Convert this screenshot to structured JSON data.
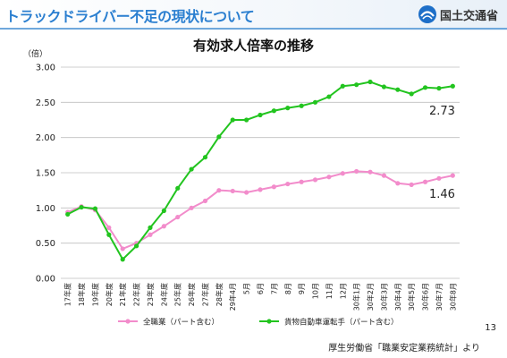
{
  "header": {
    "title": "トラックドライバー不足の現状について",
    "logo_text": "国土交通省",
    "logo_icon": "ministry-logo-icon"
  },
  "page_number": "13",
  "source": "厚生労働省「職業安定業務統計」より",
  "colors": {
    "header_title": "#2b7fd0",
    "series_all": "#f28ccb",
    "series_truck": "#22c41f",
    "grid": "#bfbfbf"
  },
  "chart_data": {
    "type": "line",
    "title": "有効求人倍率の推移",
    "ylabel": "（倍）",
    "xlabel": "",
    "ylim": [
      0,
      3
    ],
    "yticks": [
      "0.00",
      "0.50",
      "1.00",
      "1.50",
      "2.00",
      "2.50",
      "3.00"
    ],
    "grid": "horizontal",
    "legend_position": "bottom",
    "categories": [
      "17年度",
      "18年度",
      "19年度",
      "20年度",
      "21年度",
      "22年度",
      "23年度",
      "24年度",
      "25年度",
      "26年度",
      "27年度",
      "28年度",
      "29年4月",
      "5月",
      "6月",
      "7月",
      "8月",
      "9月",
      "10月",
      "11月",
      "12月",
      "30年1月",
      "30年2月",
      "30年3月",
      "30年4月",
      "30年5月",
      "30年6月",
      "30年7月",
      "30年8月"
    ],
    "series": [
      {
        "name": "全職業（パート含む）",
        "color": "#f28ccb",
        "values": [
          0.94,
          1.02,
          0.97,
          0.72,
          0.42,
          0.5,
          0.62,
          0.74,
          0.87,
          1.0,
          1.1,
          1.25,
          1.24,
          1.22,
          1.26,
          1.3,
          1.34,
          1.37,
          1.4,
          1.44,
          1.49,
          1.52,
          1.51,
          1.46,
          1.35,
          1.33,
          1.37,
          1.42,
          1.46
        ],
        "end_label": "1.46"
      },
      {
        "name": "貨物自動車運転手（パート含む）",
        "color": "#22c41f",
        "values": [
          0.91,
          1.01,
          0.99,
          0.62,
          0.27,
          0.46,
          0.72,
          0.96,
          1.28,
          1.55,
          1.72,
          2.01,
          2.25,
          2.25,
          2.32,
          2.38,
          2.42,
          2.45,
          2.5,
          2.58,
          2.73,
          2.75,
          2.79,
          2.72,
          2.68,
          2.62,
          2.71,
          2.7,
          2.73
        ],
        "end_label": "2.73"
      }
    ]
  }
}
